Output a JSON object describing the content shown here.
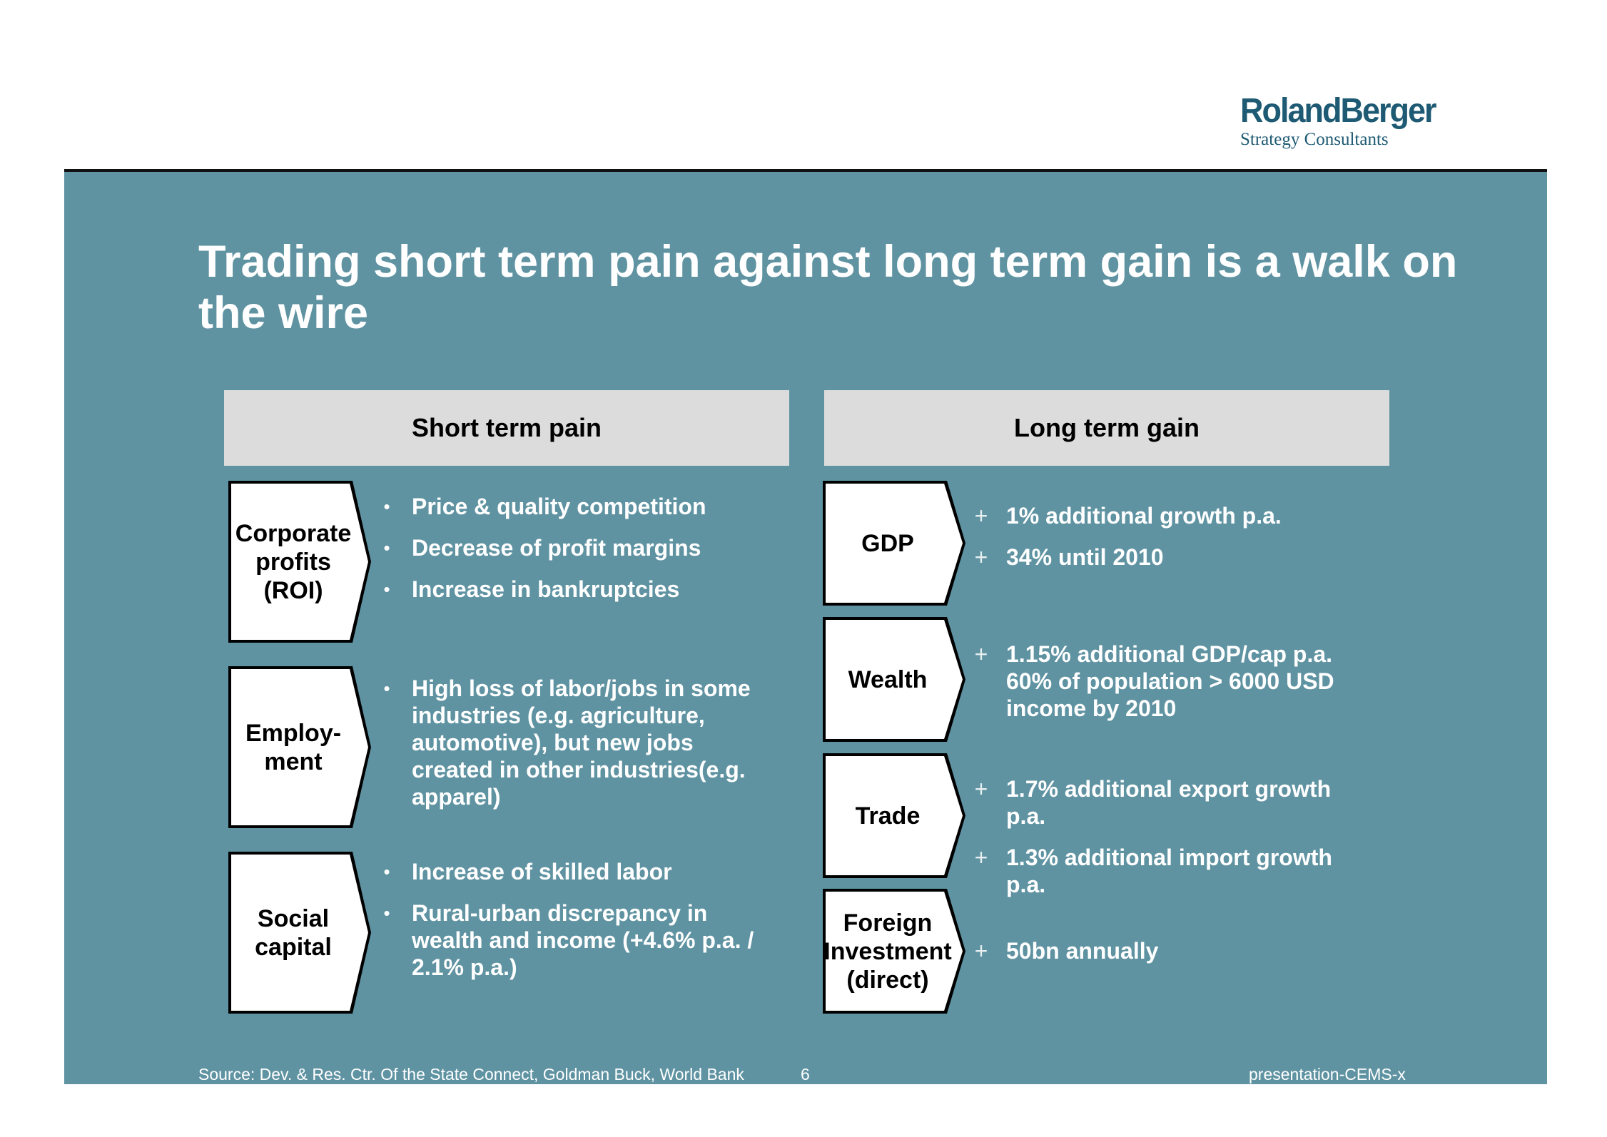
{
  "logo": {
    "brand": "RolandBerger",
    "subtitle": "Strategy Consultants"
  },
  "title": "Trading short term pain against long term gain is a walk on the wire",
  "short_term": {
    "heading": "Short term pain",
    "items": [
      {
        "label": "Corporate profits (ROI)",
        "points": [
          "Price & quality competition",
          "Decrease of profit margins",
          "Increase in bankruptcies"
        ]
      },
      {
        "label": "Employ- ment",
        "points": [
          "High loss of labor/jobs in some industries (e.g. agriculture, automotive), but new jobs created in other industries(e.g. apparel)"
        ]
      },
      {
        "label": "Social capital",
        "points": [
          "Increase of skilled labor",
          "Rural-urban discrepancy in wealth and income (+4.6% p.a. / 2.1% p.a.)"
        ]
      }
    ]
  },
  "long_term": {
    "heading": "Long term gain",
    "items": [
      {
        "label": "GDP",
        "points": [
          "1% additional growth p.a.",
          "34% until 2010"
        ]
      },
      {
        "label": "Wealth",
        "points": [
          "1.15% additional GDP/cap p.a. 60% of population > 6000 USD income by 2010"
        ]
      },
      {
        "label": "Trade",
        "points": [
          "1.7% additional export growth p.a.",
          "1.3% additional import growth p.a."
        ]
      },
      {
        "label": "Foreign Investment (direct)",
        "points": [
          "50bn annually"
        ]
      }
    ]
  },
  "markers": {
    "bullet": "•",
    "plus": "+"
  },
  "footer": {
    "source": "Source: Dev. & Res. Ctr. Of the State Connect, Goldman Buck, World Bank",
    "page": "6",
    "doc_id": "presentation-CEMS-x"
  }
}
